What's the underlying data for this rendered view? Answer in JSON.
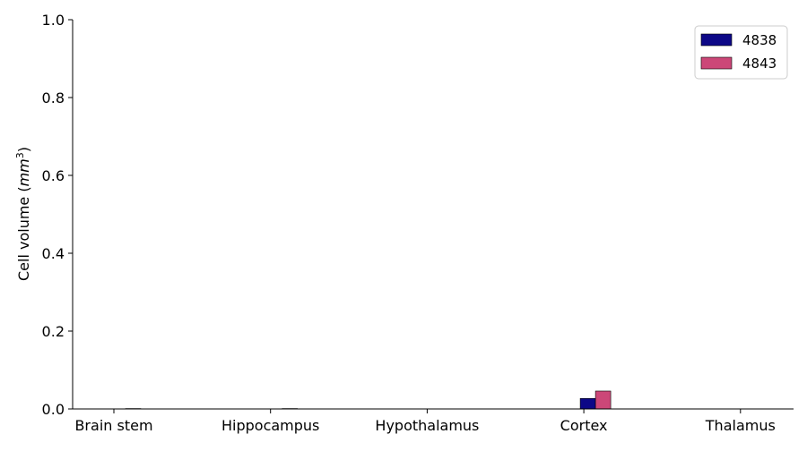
{
  "chart_data": {
    "type": "bar",
    "categories": [
      "Brain stem",
      "Hippocampus",
      "Hypothalamus",
      "Cortex",
      "Thalamus"
    ],
    "series": [
      {
        "name": "4838",
        "values": [
          0.0,
          0.0,
          0.0,
          0.027,
          0.0
        ],
        "color": "#0d0887"
      },
      {
        "name": "4843",
        "values": [
          0.001,
          0.001,
          0.0,
          0.046,
          0.0
        ],
        "color": "#cc4778"
      }
    ],
    "title": "",
    "xlabel": "",
    "ylabel": "Cell volume (mm³)",
    "ylabel_parts": {
      "prefix": "Cell volume (",
      "unit": "mm",
      "exponent": "3",
      "suffix": ")"
    },
    "ylim": [
      0,
      1.0
    ],
    "yticks": [
      "0.0",
      "0.2",
      "0.4",
      "0.6",
      "0.8",
      "1.0"
    ],
    "grid": false,
    "legend_position": "top-right"
  }
}
